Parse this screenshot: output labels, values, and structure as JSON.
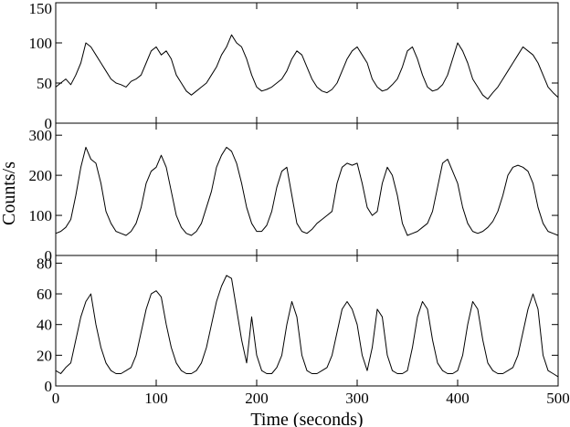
{
  "chart_data": {
    "type": "line",
    "xlabel": "Time (seconds)",
    "ylabel": "Counts/s",
    "xlim": [
      0,
      500
    ],
    "x_ticks": [
      0,
      100,
      200,
      300,
      400,
      500
    ],
    "grid": false,
    "panels": [
      {
        "ylim": [
          0,
          150
        ],
        "y_ticks": [
          0,
          50,
          100,
          150
        ],
        "series": [
          {
            "x": [
              0,
              5,
              10,
              15,
              20,
              25,
              30,
              35,
              40,
              45,
              50,
              55,
              60,
              65,
              70,
              75,
              80,
              85,
              90,
              95,
              100,
              105,
              110,
              115,
              120,
              125,
              130,
              135,
              140,
              145,
              150,
              155,
              160,
              165,
              170,
              175,
              180,
              185,
              190,
              195,
              200,
              205,
              210,
              215,
              220,
              225,
              230,
              235,
              240,
              245,
              250,
              255,
              260,
              265,
              270,
              275,
              280,
              285,
              290,
              295,
              300,
              305,
              310,
              315,
              320,
              325,
              330,
              335,
              340,
              345,
              350,
              355,
              360,
              365,
              370,
              375,
              380,
              385,
              390,
              395,
              400,
              405,
              410,
              415,
              420,
              425,
              430,
              435,
              440,
              445,
              450,
              455,
              460,
              465,
              470,
              475,
              480,
              485,
              490,
              495,
              500
            ],
            "values": [
              45,
              50,
              55,
              48,
              60,
              75,
              100,
              95,
              85,
              75,
              65,
              55,
              50,
              48,
              45,
              52,
              55,
              60,
              75,
              90,
              95,
              85,
              90,
              80,
              60,
              50,
              40,
              35,
              40,
              45,
              50,
              60,
              70,
              85,
              95,
              110,
              100,
              95,
              80,
              60,
              45,
              40,
              42,
              45,
              50,
              55,
              65,
              80,
              90,
              85,
              70,
              55,
              45,
              40,
              38,
              42,
              50,
              65,
              80,
              90,
              95,
              85,
              75,
              55,
              45,
              40,
              42,
              48,
              55,
              70,
              90,
              95,
              80,
              60,
              45,
              40,
              42,
              48,
              60,
              80,
              100,
              90,
              75,
              55,
              45,
              35,
              30,
              38,
              45,
              55,
              65,
              75,
              85,
              95,
              90,
              85,
              75,
              60,
              45,
              38,
              32
            ]
          }
        ]
      },
      {
        "ylim": [
          0,
          330
        ],
        "y_ticks": [
          0,
          100,
          200,
          300
        ],
        "series": [
          {
            "x": [
              0,
              5,
              10,
              15,
              20,
              25,
              30,
              35,
              40,
              45,
              50,
              55,
              60,
              65,
              70,
              75,
              80,
              85,
              90,
              95,
              100,
              105,
              110,
              115,
              120,
              125,
              130,
              135,
              140,
              145,
              150,
              155,
              160,
              165,
              170,
              175,
              180,
              185,
              190,
              195,
              200,
              205,
              210,
              215,
              220,
              225,
              230,
              235,
              240,
              245,
              250,
              255,
              260,
              265,
              270,
              275,
              280,
              285,
              290,
              295,
              300,
              305,
              310,
              315,
              320,
              325,
              330,
              335,
              340,
              345,
              350,
              355,
              360,
              365,
              370,
              375,
              380,
              385,
              390,
              395,
              400,
              405,
              410,
              415,
              420,
              425,
              430,
              435,
              440,
              445,
              450,
              455,
              460,
              465,
              470,
              475,
              480,
              485,
              490,
              495,
              500
            ],
            "values": [
              55,
              60,
              70,
              90,
              150,
              220,
              270,
              240,
              230,
              180,
              110,
              80,
              60,
              55,
              50,
              60,
              80,
              120,
              180,
              210,
              220,
              250,
              220,
              160,
              100,
              70,
              55,
              50,
              60,
              80,
              120,
              160,
              220,
              250,
              270,
              260,
              230,
              180,
              120,
              80,
              60,
              60,
              75,
              110,
              170,
              210,
              220,
              150,
              80,
              60,
              55,
              65,
              80,
              90,
              100,
              110,
              180,
              220,
              230,
              225,
              230,
              180,
              120,
              100,
              110,
              180,
              220,
              200,
              150,
              80,
              50,
              55,
              60,
              70,
              80,
              110,
              170,
              230,
              240,
              210,
              180,
              120,
              80,
              60,
              55,
              60,
              70,
              85,
              110,
              150,
              200,
              220,
              225,
              220,
              210,
              180,
              120,
              80,
              60,
              55,
              50
            ]
          }
        ]
      },
      {
        "ylim": [
          0,
          85
        ],
        "y_ticks": [
          0,
          20,
          40,
          60,
          80
        ],
        "series": [
          {
            "x": [
              0,
              5,
              10,
              15,
              20,
              25,
              30,
              35,
              40,
              45,
              50,
              55,
              60,
              65,
              70,
              75,
              80,
              85,
              90,
              95,
              100,
              105,
              110,
              115,
              120,
              125,
              130,
              135,
              140,
              145,
              150,
              155,
              160,
              165,
              170,
              175,
              180,
              185,
              190,
              195,
              200,
              205,
              210,
              215,
              220,
              225,
              230,
              235,
              240,
              245,
              250,
              255,
              260,
              265,
              270,
              275,
              280,
              285,
              290,
              295,
              300,
              305,
              310,
              315,
              320,
              325,
              330,
              335,
              340,
              345,
              350,
              355,
              360,
              365,
              370,
              375,
              380,
              385,
              390,
              395,
              400,
              405,
              410,
              415,
              420,
              425,
              430,
              435,
              440,
              445,
              450,
              455,
              460,
              465,
              470,
              475,
              480,
              485,
              490,
              495,
              500
            ],
            "values": [
              10,
              8,
              12,
              15,
              30,
              45,
              55,
              60,
              40,
              25,
              15,
              10,
              8,
              8,
              10,
              12,
              20,
              35,
              50,
              60,
              62,
              58,
              40,
              25,
              15,
              10,
              8,
              8,
              10,
              15,
              25,
              40,
              55,
              65,
              72,
              70,
              50,
              30,
              15,
              45,
              20,
              10,
              8,
              8,
              12,
              20,
              40,
              55,
              45,
              20,
              10,
              8,
              8,
              10,
              12,
              20,
              35,
              50,
              55,
              50,
              40,
              20,
              10,
              25,
              50,
              45,
              20,
              10,
              8,
              8,
              10,
              25,
              45,
              55,
              50,
              30,
              15,
              10,
              8,
              8,
              10,
              20,
              40,
              55,
              50,
              30,
              15,
              10,
              8,
              8,
              10,
              12,
              20,
              35,
              50,
              60,
              50,
              20,
              10,
              8,
              6
            ]
          }
        ]
      }
    ]
  }
}
